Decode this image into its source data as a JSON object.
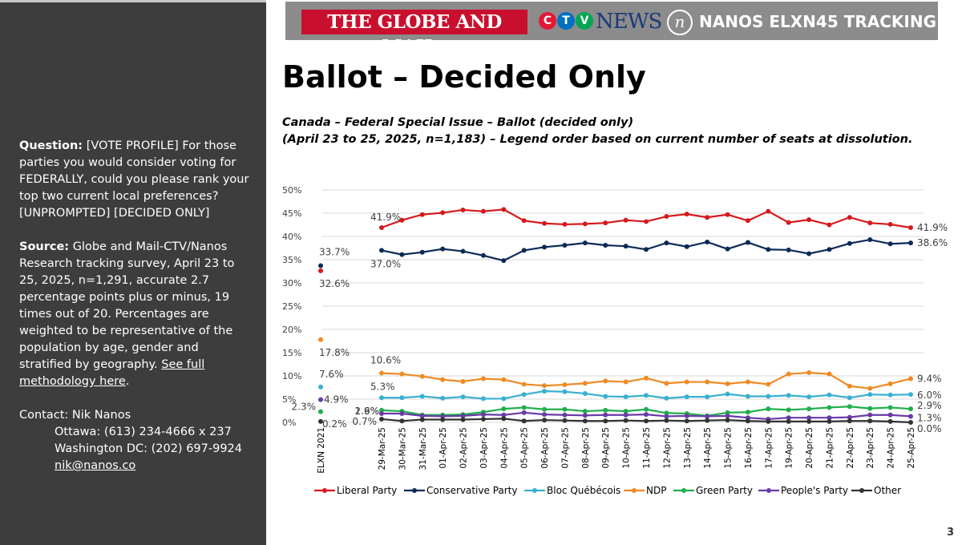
{
  "sidebar": {
    "question_label": "Question:",
    "question_text": " [VOTE PROFILE] For those parties you would consider voting for FEDERALLY, could you please rank your top two current local preferences? [UNPROMPTED] [DECIDED ONLY]",
    "source_label": "Source:",
    "source_text": " Globe and Mail-CTV/Nanos Research tracking survey, April 23 to 25, 2025, n=1,291, accurate 2.7 percentage points plus or minus, 19 times out of 20. Percentages are weighted to be representative of the population by age, gender and stratified by geography. ",
    "methodology_link": "See full methodology here",
    "methodology_after": ".",
    "contact_label": "Contact: Nik Nanos",
    "ottawa": "Ottawa: (613) 234-4666 x 237",
    "washington": "Washington DC: (202) 697-9924",
    "email": "nik@nanos.co"
  },
  "banner": {
    "globe_and_mail": "THE GLOBE AND MAIL",
    "ctv_letters": [
      "C",
      "T",
      "V"
    ],
    "ctv_news": "NEWS",
    "nanos_mark": "n",
    "nanos": "NANOS",
    "tracking": "ELXN45 TRACKING",
    "colors": {
      "background": "#8c8c8c",
      "globe_red": "#c8102e",
      "ctv_red": "#e31837",
      "ctv_blue": "#0070c0",
      "ctv_green": "#00a651",
      "news_blue": "#1a3a7a"
    }
  },
  "page": {
    "title": "Ballot – Decided Only",
    "subtitle_line1": "Canada – Federal Special Issue – Ballot (decided only)",
    "subtitle_line2": "(April 23 to 25, 2025, n=1,183) – Legend order based on current number of seats at dissolution.",
    "page_number": "3"
  },
  "chart_data": {
    "type": "line",
    "ylim": [
      0,
      50
    ],
    "y_ticks": [
      "0%",
      "5%",
      "10%",
      "15%",
      "20%",
      "25%",
      "30%",
      "35%",
      "40%",
      "45%",
      "50%"
    ],
    "grid": true,
    "legend_position": "bottom",
    "baseline_category": "ELXN 2021",
    "categories": [
      "29-Mar-25",
      "30-Mar-25",
      "31-Mar-25",
      "01-Apr-25",
      "02-Apr-25",
      "03-Apr-25",
      "04-Apr-25",
      "05-Apr-25",
      "06-Apr-25",
      "07-Apr-25",
      "08-Apr-25",
      "09-Apr-25",
      "10-Apr-25",
      "11-Apr-25",
      "12-Apr-25",
      "13-Apr-25",
      "14-Apr-25",
      "15-Apr-25",
      "16-Apr-25",
      "17-Apr-25",
      "19-Apr-25",
      "20-Apr-25",
      "21-Apr-25",
      "22-Apr-25",
      "23-Apr-25",
      "24-Apr-25",
      "25-Apr-25"
    ],
    "series": [
      {
        "name": "Liberal Party",
        "color": "#d7191c",
        "baseline": 32.6,
        "baseline_label": "32.6%",
        "first_label": "41.9%",
        "last_label": "41.9%",
        "values": [
          41.9,
          43.5,
          44.7,
          45.1,
          45.7,
          45.4,
          45.8,
          43.4,
          42.8,
          42.6,
          42.7,
          42.9,
          43.5,
          43.2,
          44.3,
          44.8,
          44.1,
          44.7,
          43.4,
          45.4,
          43.0,
          43.6,
          42.5,
          44.1,
          42.9,
          42.6,
          41.9
        ]
      },
      {
        "name": "Conservative Party",
        "color": "#0b2a56",
        "baseline": 33.7,
        "baseline_label": "33.7%",
        "first_label": "37.0%",
        "last_label": "38.6%",
        "values": [
          37.0,
          36.1,
          36.6,
          37.3,
          36.8,
          35.9,
          34.8,
          37.0,
          37.7,
          38.1,
          38.6,
          38.1,
          37.9,
          37.2,
          38.6,
          37.8,
          38.8,
          37.3,
          38.7,
          37.2,
          37.1,
          36.3,
          37.2,
          38.5,
          39.3,
          38.4,
          38.6
        ]
      },
      {
        "name": "Bloc Québécois",
        "color": "#3ab0d0",
        "baseline": 7.6,
        "baseline_label": "7.6%",
        "first_label": "5.3%",
        "last_label": "6.0%",
        "values": [
          5.3,
          5.3,
          5.6,
          5.2,
          5.5,
          5.1,
          5.1,
          6.0,
          6.7,
          6.6,
          6.2,
          5.6,
          5.5,
          5.8,
          5.2,
          5.5,
          5.5,
          6.1,
          5.6,
          5.6,
          5.8,
          5.5,
          5.9,
          5.3,
          6.0,
          5.9,
          6.0
        ]
      },
      {
        "name": "NDP",
        "color": "#f08a24",
        "baseline": 17.8,
        "baseline_label": "17.8%",
        "first_label": "10.6%",
        "last_label": "9.4%",
        "values": [
          10.6,
          10.4,
          9.9,
          9.2,
          8.8,
          9.4,
          9.2,
          8.2,
          7.9,
          8.1,
          8.4,
          8.9,
          8.7,
          9.5,
          8.4,
          8.7,
          8.7,
          8.3,
          8.7,
          8.2,
          10.4,
          10.7,
          10.4,
          7.8,
          7.3,
          8.3,
          9.4
        ]
      },
      {
        "name": "Green Party",
        "color": "#1fae4b",
        "baseline": 2.3,
        "baseline_label": "2.3%",
        "first_label": "2.6%",
        "last_label": "2.9%",
        "values": [
          2.6,
          2.4,
          1.6,
          1.6,
          1.7,
          2.2,
          2.9,
          3.2,
          2.8,
          2.8,
          2.4,
          2.6,
          2.4,
          2.8,
          2.0,
          1.9,
          1.4,
          2.1,
          2.2,
          2.9,
          2.7,
          2.9,
          3.2,
          3.4,
          3.0,
          3.2,
          2.9
        ]
      },
      {
        "name": "People's Party",
        "color": "#6a3aa8",
        "baseline": 4.9,
        "baseline_label": "4.9%",
        "first_label": "1.9%",
        "last_label": "1.3%",
        "values": [
          1.9,
          1.9,
          1.4,
          1.3,
          1.4,
          1.7,
          1.6,
          2.1,
          1.7,
          1.6,
          1.5,
          1.6,
          1.6,
          1.7,
          1.3,
          1.4,
          1.3,
          1.4,
          1.0,
          0.7,
          1.0,
          1.0,
          1.0,
          1.1,
          1.6,
          1.6,
          1.3
        ]
      },
      {
        "name": "Other",
        "color": "#333333",
        "baseline": 0.2,
        "baseline_label": "0.2%",
        "first_label": "0.7%",
        "last_label": "0.0%",
        "values": [
          0.7,
          0.3,
          0.6,
          0.6,
          0.6,
          0.7,
          0.8,
          0.3,
          0.5,
          0.4,
          0.3,
          0.3,
          0.4,
          0.3,
          0.4,
          0.3,
          0.4,
          0.5,
          0.3,
          0.2,
          0.2,
          0.2,
          0.2,
          0.3,
          0.3,
          0.2,
          0.0
        ]
      }
    ]
  }
}
